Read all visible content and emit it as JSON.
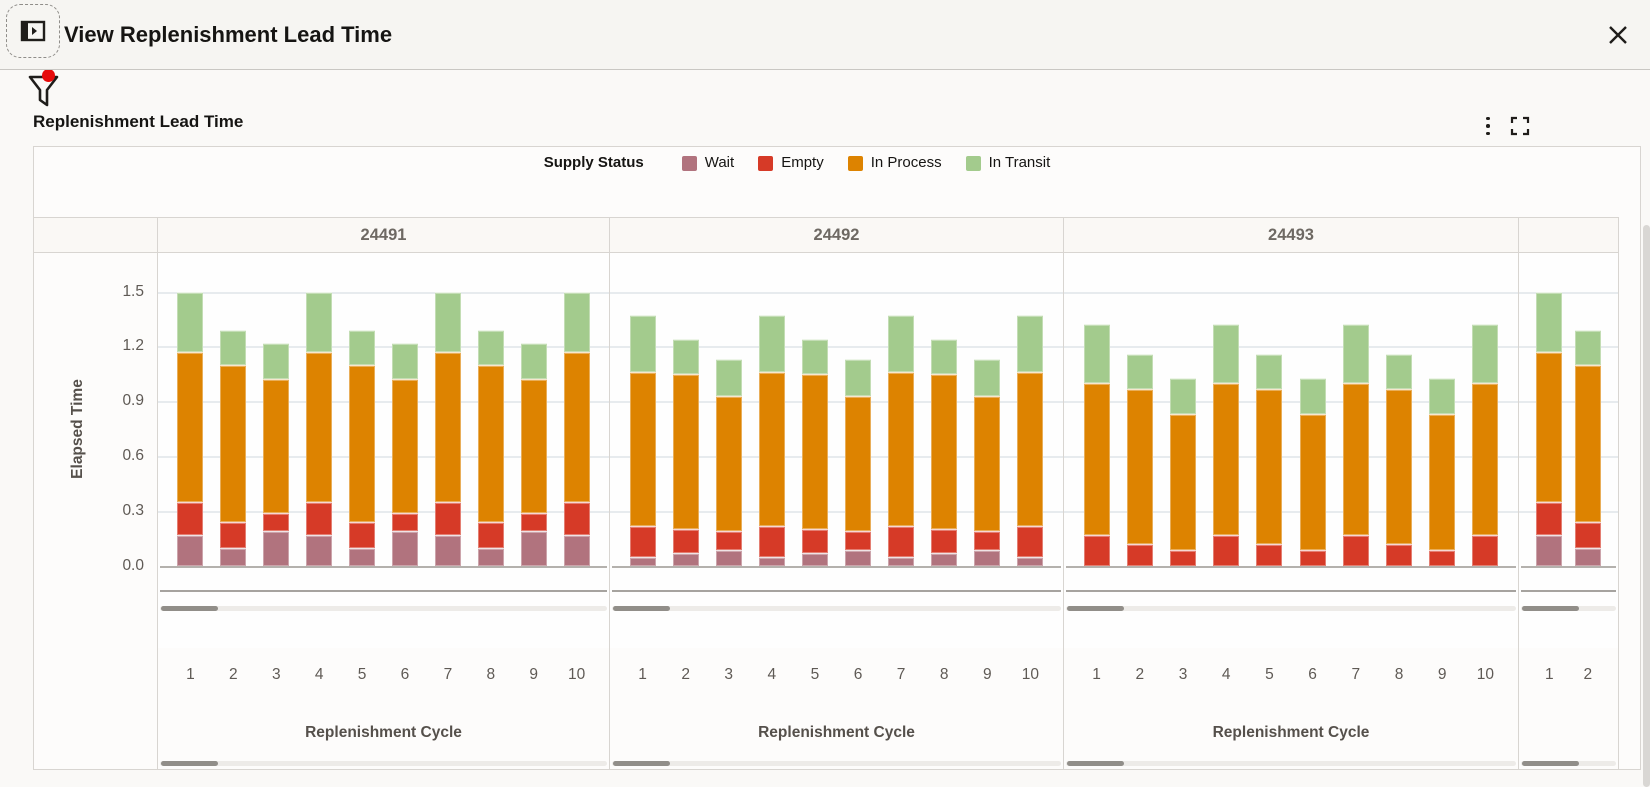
{
  "window": {
    "title": "View Replenishment Lead Time"
  },
  "icons": {
    "drawer_toggle": "panel-open-icon",
    "filter": "filter-funnel-icon",
    "filter_badge": "red-dot-badge",
    "overflow_menu": "kebab-menu-icon",
    "maximize": "maximize-icon",
    "close": "close-icon"
  },
  "section": {
    "title": "Replenishment Lead Time"
  },
  "legend": {
    "title": "Supply Status",
    "items": [
      {
        "label": "Wait",
        "color": "#b1737e"
      },
      {
        "label": "Empty",
        "color": "#d63a27"
      },
      {
        "label": "In Process",
        "color": "#dd8300"
      },
      {
        "label": "In Transit",
        "color": "#a3cb8d"
      }
    ]
  },
  "chart_data": {
    "type": "bar",
    "stacked": true,
    "title": "Replenishment Lead Time",
    "xlabel": "Replenishment Cycle",
    "ylabel": "Elapsed Time",
    "ytick_labels": [
      "0.0",
      "0.3",
      "0.6",
      "0.9",
      "1.2",
      "1.5"
    ],
    "ytick_values": [
      0.0,
      0.3,
      0.6,
      0.9,
      1.2,
      1.5
    ],
    "ylim": [
      0,
      1.71
    ],
    "grid": true,
    "legend_position": "top",
    "series": [
      {
        "name": "Wait",
        "key": "wait",
        "color": "#b1737e"
      },
      {
        "name": "Empty",
        "key": "empty",
        "color": "#d63a27"
      },
      {
        "name": "In Process",
        "key": "in_process",
        "color": "#dd8300"
      },
      {
        "name": "In Transit",
        "key": "in_transit",
        "color": "#a3cb8d"
      }
    ],
    "panels": [
      {
        "label": "24491",
        "cycles": [
          "1",
          "2",
          "3",
          "4",
          "5",
          "6",
          "7",
          "8",
          "9",
          "10"
        ],
        "bars": [
          [
            0.17,
            0.18,
            0.82,
            0.33
          ],
          [
            0.1,
            0.14,
            0.86,
            0.19
          ],
          [
            0.19,
            0.1,
            0.73,
            0.2
          ],
          [
            0.17,
            0.18,
            0.82,
            0.33
          ],
          [
            0.1,
            0.14,
            0.86,
            0.19
          ],
          [
            0.19,
            0.1,
            0.73,
            0.2
          ],
          [
            0.17,
            0.18,
            0.82,
            0.33
          ],
          [
            0.1,
            0.14,
            0.86,
            0.19
          ],
          [
            0.19,
            0.1,
            0.73,
            0.2
          ],
          [
            0.17,
            0.18,
            0.82,
            0.33
          ]
        ],
        "partial": false
      },
      {
        "label": "24492",
        "cycles": [
          "1",
          "2",
          "3",
          "4",
          "5",
          "6",
          "7",
          "8",
          "9",
          "10"
        ],
        "bars": [
          [
            0.05,
            0.17,
            0.84,
            0.31
          ],
          [
            0.07,
            0.13,
            0.85,
            0.19
          ],
          [
            0.09,
            0.1,
            0.74,
            0.2
          ],
          [
            0.05,
            0.17,
            0.84,
            0.31
          ],
          [
            0.07,
            0.13,
            0.85,
            0.19
          ],
          [
            0.09,
            0.1,
            0.74,
            0.2
          ],
          [
            0.05,
            0.17,
            0.84,
            0.31
          ],
          [
            0.07,
            0.13,
            0.85,
            0.19
          ],
          [
            0.09,
            0.1,
            0.74,
            0.2
          ],
          [
            0.05,
            0.17,
            0.84,
            0.31
          ]
        ],
        "partial": false
      },
      {
        "label": "24493",
        "cycles": [
          "1",
          "2",
          "3",
          "4",
          "5",
          "6",
          "7",
          "8",
          "9",
          "10"
        ],
        "bars": [
          [
            0,
            0.17,
            0.83,
            0.32
          ],
          [
            0,
            0.12,
            0.85,
            0.19
          ],
          [
            0,
            0.09,
            0.74,
            0.2
          ],
          [
            0,
            0.17,
            0.83,
            0.32
          ],
          [
            0,
            0.12,
            0.85,
            0.19
          ],
          [
            0,
            0.09,
            0.74,
            0.2
          ],
          [
            0,
            0.17,
            0.83,
            0.32
          ],
          [
            0,
            0.12,
            0.85,
            0.19
          ],
          [
            0,
            0.09,
            0.74,
            0.2
          ],
          [
            0,
            0.17,
            0.83,
            0.32
          ]
        ],
        "partial": false
      },
      {
        "label": "",
        "cycles": [
          "1",
          "2"
        ],
        "bars": [
          [
            0.17,
            0.18,
            0.82,
            0.33
          ],
          [
            0.1,
            0.14,
            0.86,
            0.19
          ]
        ],
        "partial": true
      }
    ]
  }
}
